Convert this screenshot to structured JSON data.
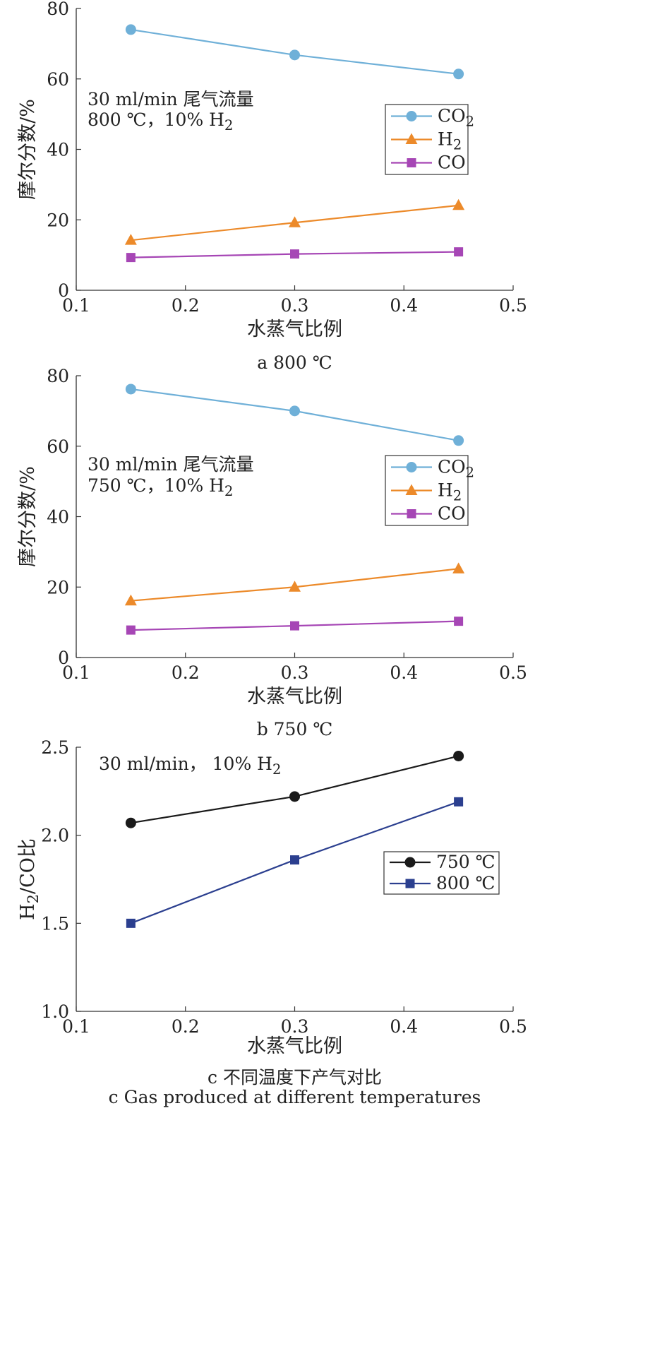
{
  "chart_data": [
    {
      "type": "line",
      "caption": "a  800 ℃",
      "xlabel": "水蒸气比例",
      "ylabel": "摩尔分数/%",
      "xlim": [
        0.1,
        0.5
      ],
      "ylim": [
        0,
        80
      ],
      "xticks": [
        "0.1",
        "0.2",
        "0.3",
        "0.4",
        "0.5"
      ],
      "yticks": [
        "0",
        "20",
        "40",
        "60",
        "80"
      ],
      "annotation": [
        "30 ml/min 尾气流量",
        "800 ℃，10% H2"
      ],
      "legend_position": "right",
      "x": [
        0.15,
        0.3,
        0.45
      ],
      "series": [
        {
          "name": "CO2",
          "color": "#6fb0d8",
          "marker": "circle",
          "values": [
            74,
            66.8,
            61.4
          ]
        },
        {
          "name": "H2",
          "color": "#ec8a2a",
          "marker": "triangle",
          "values": [
            14.2,
            19.2,
            24.1
          ]
        },
        {
          "name": "CO",
          "color": "#a646b5",
          "marker": "square",
          "values": [
            9.3,
            10.3,
            10.9
          ]
        }
      ]
    },
    {
      "type": "line",
      "caption": "b  750 ℃",
      "xlabel": "水蒸气比例",
      "ylabel": "摩尔分数/%",
      "xlim": [
        0.1,
        0.5
      ],
      "ylim": [
        0,
        80
      ],
      "xticks": [
        "0.1",
        "0.2",
        "0.3",
        "0.4",
        "0.5"
      ],
      "yticks": [
        "0",
        "20",
        "40",
        "60",
        "80"
      ],
      "annotation": [
        "30 ml/min 尾气流量",
        "750 ℃，10% H2"
      ],
      "legend_position": "right",
      "x": [
        0.15,
        0.3,
        0.45
      ],
      "series": [
        {
          "name": "CO2",
          "color": "#6fb0d8",
          "marker": "circle",
          "values": [
            76.2,
            70,
            61.6
          ]
        },
        {
          "name": "H2",
          "color": "#ec8a2a",
          "marker": "triangle",
          "values": [
            16.1,
            20,
            25.2
          ]
        },
        {
          "name": "CO",
          "color": "#a646b5",
          "marker": "square",
          "values": [
            7.8,
            9,
            10.3
          ]
        }
      ]
    },
    {
      "type": "line",
      "caption": "c  不同温度下产气对比",
      "caption_en": "c  Gas produced at different temperatures",
      "xlabel": "水蒸气比例",
      "ylabel": "H2/CO比",
      "xlim": [
        0.1,
        0.5
      ],
      "ylim": [
        1.0,
        2.5
      ],
      "xticks": [
        "0.1",
        "0.2",
        "0.3",
        "0.4",
        "0.5"
      ],
      "yticks": [
        "1.0",
        "1.5",
        "2.0",
        "2.5"
      ],
      "annotation": [
        "30 ml/min，  10% H2"
      ],
      "legend_position": "right",
      "x": [
        0.15,
        0.3,
        0.45
      ],
      "series": [
        {
          "name": "750 ℃",
          "color": "#1a1a1a",
          "marker": "circle",
          "values": [
            2.07,
            2.22,
            2.45
          ]
        },
        {
          "name": "800 ℃",
          "color": "#2b3f8f",
          "marker": "square",
          "values": [
            1.5,
            1.86,
            2.19
          ]
        }
      ]
    }
  ]
}
